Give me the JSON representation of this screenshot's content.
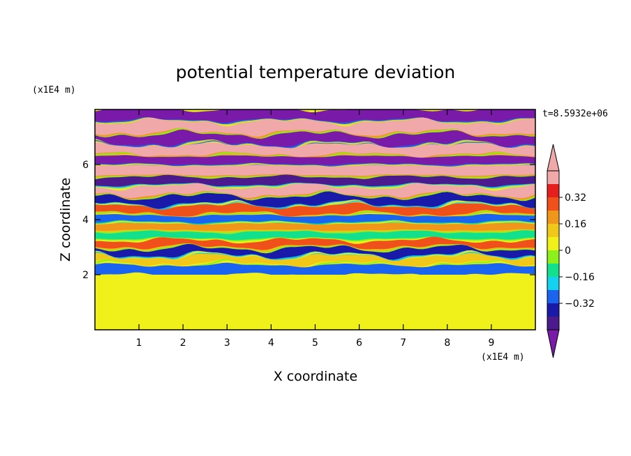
{
  "chart_data": {
    "type": "heatmap",
    "title": "potential temperature deviation",
    "xlabel": "X coordinate",
    "ylabel": "Z coordinate",
    "x_unit": "(x1E4 m)",
    "y_unit": "(x1E4 m)",
    "time_label": "t=8.5932e+06",
    "xlim": [
      0,
      10
    ],
    "ylim": [
      0,
      8
    ],
    "x_ticks": [
      "1",
      "2",
      "3",
      "4",
      "5",
      "6",
      "7",
      "8",
      "9"
    ],
    "y_ticks": [
      "2",
      "4",
      "6"
    ],
    "x_tick_values": [
      1,
      2,
      3,
      4,
      5,
      6,
      7,
      8,
      9
    ],
    "y_tick_values": [
      2,
      4,
      6
    ],
    "colorbar": {
      "levels": [
        -0.48,
        -0.4,
        -0.32,
        -0.24,
        -0.16,
        -0.08,
        0,
        0.08,
        0.16,
        0.24,
        0.32,
        0.4,
        0.48
      ],
      "tick_labels": [
        "0.32",
        "0.16",
        "0",
        "−0.16",
        "−0.32"
      ],
      "tick_values": [
        0.32,
        0.16,
        0,
        -0.16,
        -0.32
      ],
      "colors": [
        "#7a1aa8",
        "#4b1a8c",
        "#1a1aa8",
        "#1a64f0",
        "#12d2f0",
        "#12e08c",
        "#8cf01a",
        "#f0f01a",
        "#f0c81a",
        "#f0961a",
        "#f0501a",
        "#e61e1e",
        "#f0a8a8"
      ],
      "extend": "both"
    },
    "layers": [
      {
        "z_top": 8.0,
        "z_bottom": 7.55,
        "value": -0.5
      },
      {
        "z_top": 7.55,
        "z_bottom": 7.1,
        "value": 0.5
      },
      {
        "z_top": 7.1,
        "z_bottom": 6.7,
        "value": -0.5
      },
      {
        "z_top": 6.7,
        "z_bottom": 6.3,
        "value": 0.5
      },
      {
        "z_top": 6.3,
        "z_bottom": 5.95,
        "value": -0.5
      },
      {
        "z_top": 5.95,
        "z_bottom": 5.55,
        "value": 0.5
      },
      {
        "z_top": 5.55,
        "z_bottom": 5.2,
        "value": -0.45
      },
      {
        "z_top": 5.2,
        "z_bottom": 4.85,
        "value": 0.45
      },
      {
        "z_top": 4.85,
        "z_bottom": 4.5,
        "value": -0.4
      },
      {
        "z_top": 4.5,
        "z_bottom": 4.15,
        "value": 0.3
      },
      {
        "z_top": 4.15,
        "z_bottom": 3.85,
        "value": -0.3
      },
      {
        "z_top": 3.85,
        "z_bottom": 3.55,
        "value": 0.2
      },
      {
        "z_top": 3.55,
        "z_bottom": 3.25,
        "value": -0.15
      },
      {
        "z_top": 3.25,
        "z_bottom": 2.95,
        "value": 0.25
      },
      {
        "z_top": 2.95,
        "z_bottom": 2.65,
        "value": -0.35
      },
      {
        "z_top": 2.65,
        "z_bottom": 2.35,
        "value": 0.12
      },
      {
        "z_top": 2.35,
        "z_bottom": 2.0,
        "value": -0.25
      },
      {
        "z_top": 2.0,
        "z_bottom": 0.0,
        "value": 0.02
      }
    ]
  }
}
